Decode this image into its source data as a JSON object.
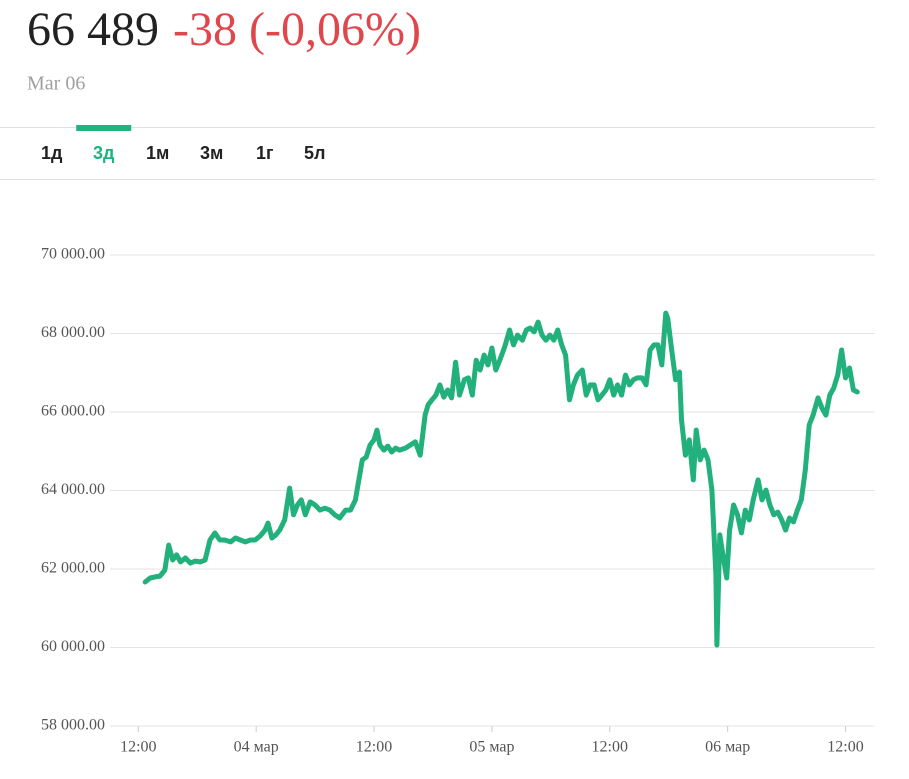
{
  "header": {
    "price": "66 489",
    "change": "-38 (-0,06%)",
    "date": "Mar 06"
  },
  "tabs": [
    "1д",
    "3д",
    "1м",
    "3м",
    "1г",
    "5л"
  ],
  "active_tab": 1,
  "chart_data": {
    "type": "line",
    "color": "#22b07d",
    "grid": true,
    "xlim": [
      8,
      87
    ],
    "xticks": [
      {
        "value": 12,
        "label": "12:00"
      },
      {
        "value": 24,
        "label": "04 мар"
      },
      {
        "value": 36,
        "label": "12:00"
      },
      {
        "value": 48,
        "label": "05 мар"
      },
      {
        "value": 60,
        "label": "12:00"
      },
      {
        "value": 72,
        "label": "06 мар"
      },
      {
        "value": 84,
        "label": "12:00"
      }
    ],
    "ylim": [
      58000,
      70000
    ],
    "yticks": [
      {
        "value": 58000,
        "label": "58 000.00"
      },
      {
        "value": 60000,
        "label": "60 000.00"
      },
      {
        "value": 62000,
        "label": "62 000.00"
      },
      {
        "value": 64000,
        "label": "64 000.00"
      },
      {
        "value": 66000,
        "label": "66 000.00"
      },
      {
        "value": 68000,
        "label": "68 000.00"
      },
      {
        "value": 70000,
        "label": "70 000.00"
      }
    ],
    "x": [
      12.7,
      13.2,
      13.7,
      14.2,
      14.7,
      15.1,
      15.5,
      15.9,
      16.3,
      16.8,
      17.3,
      17.8,
      18.3,
      18.8,
      19.3,
      19.8,
      20.3,
      20.8,
      21.4,
      21.9,
      22.4,
      22.9,
      23.4,
      23.9,
      24.4,
      24.9,
      25.2,
      25.6,
      26.0,
      26.4,
      26.9,
      27.4,
      27.8,
      28.2,
      28.6,
      29.0,
      29.5,
      30.0,
      30.5,
      31.0,
      31.5,
      32.0,
      32.5,
      33.1,
      33.6,
      34.1,
      34.4,
      34.8,
      35.2,
      35.6,
      36.0,
      36.3,
      36.6,
      37.0,
      37.4,
      37.8,
      38.2,
      38.6,
      39.2,
      39.7,
      40.2,
      40.7,
      41.2,
      41.5,
      41.9,
      42.3,
      42.7,
      43.1,
      43.5,
      43.9,
      44.3,
      44.7,
      45.2,
      45.6,
      46.0,
      46.4,
      46.8,
      47.2,
      47.6,
      48.0,
      48.4,
      48.8,
      49.3,
      49.8,
      50.2,
      50.6,
      51.1,
      51.5,
      51.9,
      52.3,
      52.7,
      53.1,
      53.5,
      53.9,
      54.3,
      54.7,
      55.1,
      55.5,
      55.9,
      56.3,
      56.7,
      57.2,
      57.6,
      58.0,
      58.4,
      58.8,
      59.2,
      59.6,
      60.0,
      60.4,
      60.8,
      61.2,
      61.6,
      62.0,
      62.4,
      62.8,
      63.3,
      63.7,
      64.1,
      64.5,
      64.9,
      65.3,
      65.7,
      65.9,
      66.3,
      66.7,
      67.1,
      67.3,
      67.7,
      68.1,
      68.5,
      68.8,
      69.2,
      69.6,
      70.0,
      70.4,
      70.8,
      70.9,
      71.2,
      71.6,
      71.9,
      72.2,
      72.6,
      73.0,
      73.4,
      73.8,
      74.2,
      74.6,
      75.1,
      75.5,
      75.9,
      76.3,
      76.7,
      77.1,
      77.5,
      77.9,
      78.3,
      78.7,
      79.1,
      79.5,
      79.9,
      80.3,
      80.7,
      81.2,
      81.6,
      82.0,
      82.4,
      82.8,
      83.2,
      83.6,
      84.0,
      84.4,
      84.8,
      85.2
    ],
    "values": [
      61670,
      61770,
      61800,
      61820,
      61970,
      62610,
      62230,
      62360,
      62180,
      62280,
      62150,
      62200,
      62180,
      62230,
      62740,
      62920,
      62740,
      62740,
      62690,
      62790,
      62740,
      62690,
      62740,
      62740,
      62840,
      62990,
      63170,
      62790,
      62870,
      62990,
      63250,
      64060,
      63380,
      63630,
      63760,
      63380,
      63710,
      63630,
      63500,
      63550,
      63500,
      63380,
      63300,
      63500,
      63500,
      63760,
      64190,
      64780,
      64850,
      65160,
      65290,
      65540,
      65160,
      65030,
      65130,
      64980,
      65080,
      65030,
      65080,
      65160,
      65240,
      64900,
      65920,
      66180,
      66310,
      66430,
      66690,
      66380,
      66560,
      66360,
      67270,
      66430,
      66820,
      66870,
      66430,
      67320,
      67070,
      67450,
      67200,
      67630,
      67070,
      67320,
      67660,
      68090,
      67710,
      67960,
      67830,
      68090,
      68140,
      68040,
      68290,
      67960,
      67830,
      67960,
      67830,
      68090,
      67710,
      67450,
      66310,
      66690,
      66940,
      67070,
      66430,
      66690,
      66690,
      66310,
      66430,
      66560,
      66820,
      66430,
      66690,
      66430,
      66940,
      66690,
      66820,
      66870,
      66870,
      66690,
      67580,
      67710,
      67710,
      67200,
      68520,
      68390,
      67580,
      66820,
      67020,
      65800,
      64900,
      65290,
      64270,
      65540,
      64780,
      65030,
      64780,
      64010,
      61850,
      60060,
      62870,
      62230,
      61770,
      62990,
      63630,
      63380,
      62920,
      63500,
      63250,
      63760,
      64270,
      63760,
      64010,
      63630,
      63380,
      63450,
      63250,
      62990,
      63300,
      63200,
      63500,
      63760,
      64520,
      65670,
      65920,
      66360,
      66100,
      65920,
      66430,
      66610,
      66940,
      67580,
      66870,
      67120,
      66560,
      66510
    ]
  }
}
